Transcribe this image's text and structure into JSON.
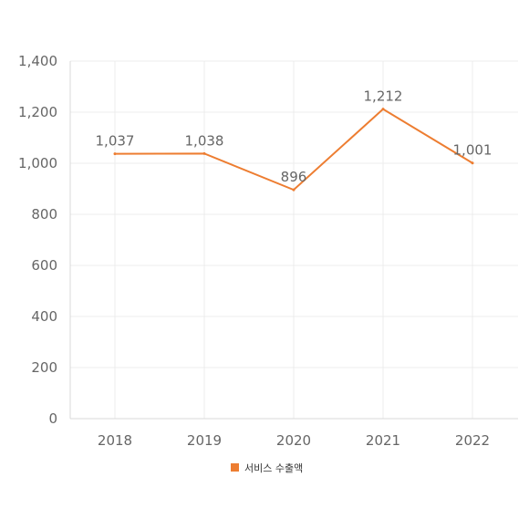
{
  "chart_data": {
    "type": "line",
    "categories": [
      "2018",
      "2019",
      "2020",
      "2021",
      "2022"
    ],
    "series": [
      {
        "name": "서비스 수출액",
        "values": [
          1037,
          1038,
          896,
          1212,
          1001
        ],
        "labels": [
          "1,037",
          "1,038",
          "896",
          "1,212",
          "1,001"
        ],
        "color": "#ed7d31"
      }
    ],
    "ylim": [
      0,
      1400
    ],
    "yticks": [
      0,
      200,
      400,
      600,
      800,
      1000,
      1200,
      1400
    ],
    "ytick_labels": [
      "0",
      "200",
      "400",
      "600",
      "800",
      "1,000",
      "1,200",
      "1,400"
    ],
    "grid": true,
    "legend_position": "bottom",
    "colors": {
      "grid": "#ececec",
      "axis": "#d9d9d9",
      "text": "#666666",
      "legend_text": "#333333"
    }
  }
}
